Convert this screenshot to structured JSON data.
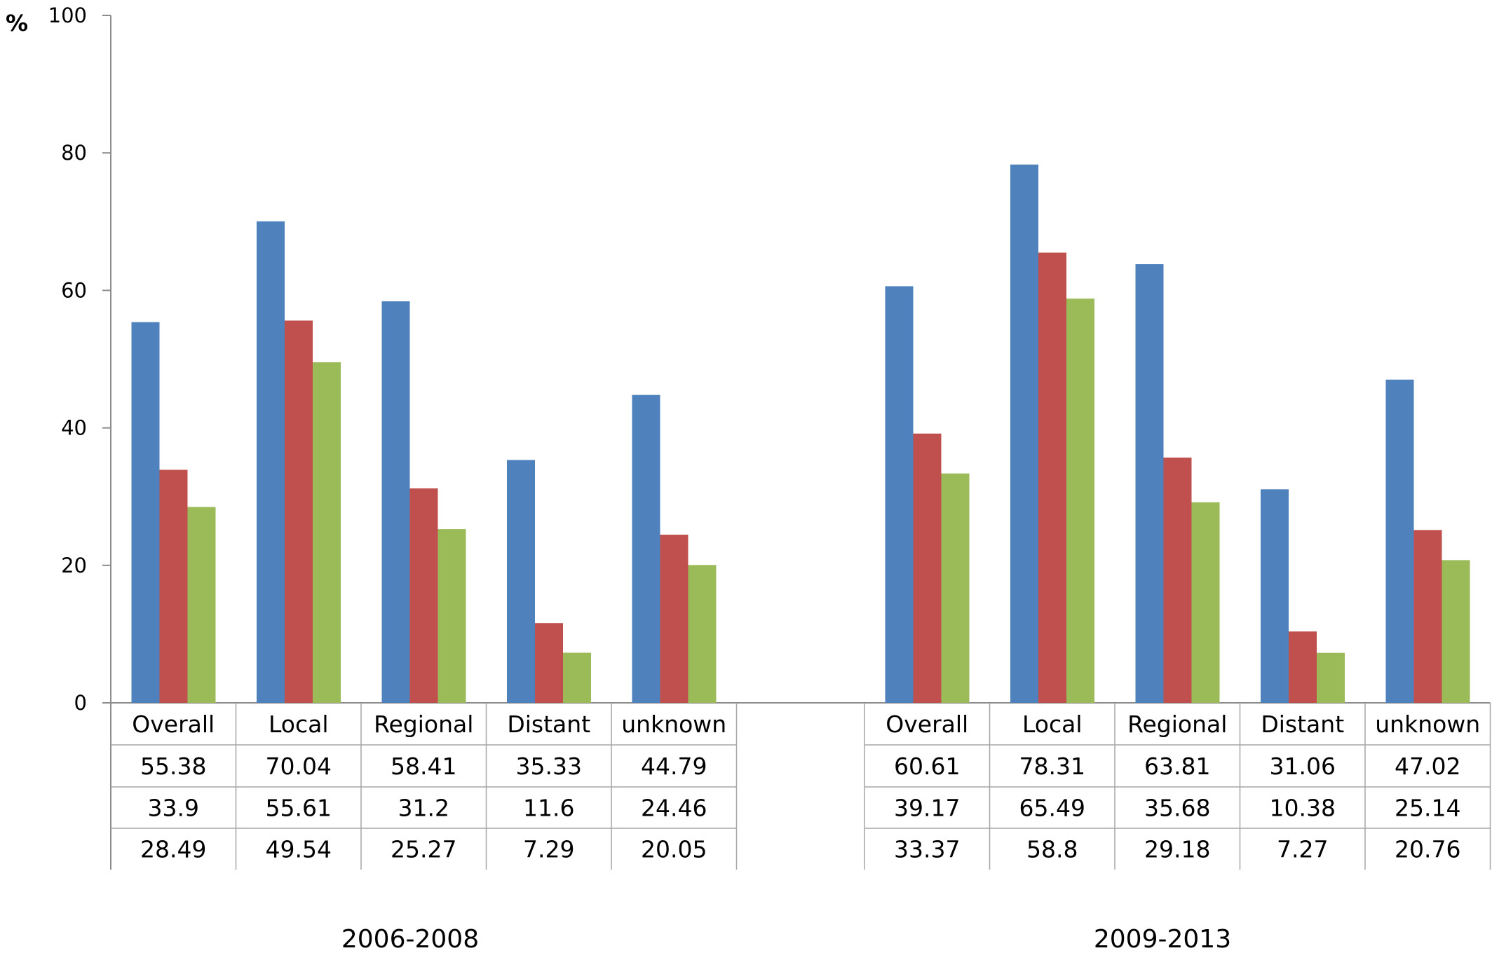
{
  "chart_data": {
    "type": "bar",
    "ylabel": "%",
    "ylim": [
      0,
      100
    ],
    "yticks": [
      0,
      20,
      40,
      60,
      80,
      100
    ],
    "grid": false,
    "legend": "none",
    "groups": [
      {
        "label": "2006-2008",
        "categories": [
          "Overall",
          "Local",
          "Regional",
          "Distant",
          "unknown"
        ],
        "series": [
          {
            "color": "#4f81bd",
            "values": [
              55.38,
              70.04,
              58.41,
              35.33,
              44.79
            ],
            "labels": [
              "55.38",
              "70.04",
              "58.41",
              "35.33",
              "44.79"
            ]
          },
          {
            "color": "#c0504d",
            "values": [
              33.9,
              55.61,
              31.2,
              11.6,
              24.46
            ],
            "labels": [
              "33.9",
              "55.61",
              "31.2",
              "11.6",
              "24.46"
            ]
          },
          {
            "color": "#9bbb59",
            "values": [
              28.49,
              49.54,
              25.27,
              7.29,
              20.05
            ],
            "labels": [
              "28.49",
              "49.54",
              "25.27",
              "7.29",
              "20.05"
            ]
          }
        ]
      },
      {
        "label": "2009-2013",
        "categories": [
          "Overall",
          "Local",
          "Regional",
          "Distant",
          "unknown"
        ],
        "series": [
          {
            "color": "#4f81bd",
            "values": [
              60.61,
              78.31,
              63.81,
              31.06,
              47.02
            ],
            "labels": [
              "60.61",
              "78.31",
              "63.81",
              "31.06",
              "47.02"
            ]
          },
          {
            "color": "#c0504d",
            "values": [
              39.17,
              65.49,
              35.68,
              10.38,
              25.14
            ],
            "labels": [
              "39.17",
              "65.49",
              "35.68",
              "10.38",
              "25.14"
            ]
          },
          {
            "color": "#9bbb59",
            "values": [
              33.37,
              58.8,
              29.18,
              7.27,
              20.76
            ],
            "labels": [
              "33.37",
              "58.8",
              "29.18",
              "7.27",
              "20.76"
            ]
          }
        ]
      }
    ]
  }
}
